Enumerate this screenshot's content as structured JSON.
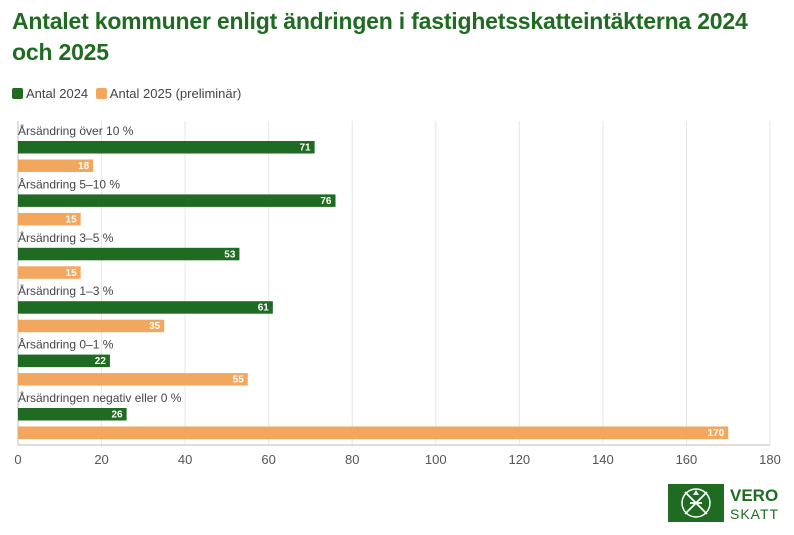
{
  "chart_data": {
    "type": "bar",
    "orientation": "horizontal",
    "title": "Antalet kommuner enligt ändringen i fastighetsskatteintäkterna 2024 och 2025",
    "categories": [
      "Årsändring över 10 %",
      "Årsändring 5–10 %",
      "Årsändring 3–5 %",
      "Årsändring 1–3 %",
      "Årsändring 0–1 %",
      "Årsändringen negativ eller 0 %"
    ],
    "series": [
      {
        "name": "Antal 2024",
        "color": "#1e6b21",
        "values": [
          71,
          76,
          53,
          61,
          22,
          26
        ]
      },
      {
        "name": "Antal 2025 (preliminär)",
        "color": "#f2a65e",
        "values": [
          18,
          15,
          15,
          35,
          55,
          170
        ]
      }
    ],
    "xlim": [
      0,
      180
    ],
    "xticks": [
      0,
      20,
      40,
      60,
      80,
      100,
      120,
      140,
      160,
      180
    ],
    "xlabel": "",
    "ylabel": "",
    "grid": true,
    "legend": "top-left"
  },
  "logo": {
    "line1": "VERO",
    "line2": "SKATT"
  }
}
